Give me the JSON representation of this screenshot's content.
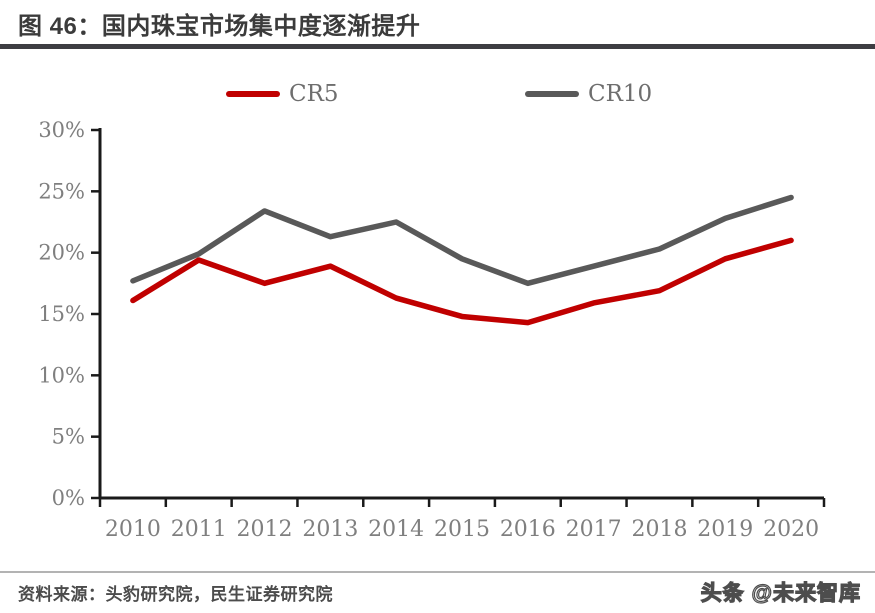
{
  "header": {
    "title": "图 46：国内珠宝市场集中度逐渐提升"
  },
  "chart_data": {
    "type": "line",
    "title": "国内珠宝市场集中度逐渐提升",
    "categories": [
      "2010",
      "2011",
      "2012",
      "2013",
      "2014",
      "2015",
      "2016",
      "2017",
      "2018",
      "2019",
      "2020"
    ],
    "series": [
      {
        "name": "CR5",
        "color": "#C00000",
        "values": [
          16.1,
          19.4,
          17.5,
          18.9,
          16.3,
          14.8,
          14.3,
          15.9,
          16.9,
          19.5,
          21.0
        ]
      },
      {
        "name": "CR10",
        "color": "#595959",
        "values": [
          17.7,
          19.9,
          23.4,
          21.3,
          22.5,
          19.5,
          17.5,
          18.9,
          20.3,
          22.8,
          24.5
        ]
      }
    ],
    "xlabel": "",
    "ylabel": "",
    "ylim": [
      0,
      30
    ],
    "y_tick_step": 5,
    "y_tick_labels": [
      "0%",
      "5%",
      "10%",
      "15%",
      "20%",
      "25%",
      "30%"
    ],
    "grid": false,
    "legend_position": "top"
  },
  "footer": {
    "source": "资料来源：头豹研究院，民生证券研究院",
    "watermark": "头条 @未来智库"
  },
  "colors": {
    "axis": "#1a1a1a",
    "tick_label": "#7f7f7f"
  }
}
